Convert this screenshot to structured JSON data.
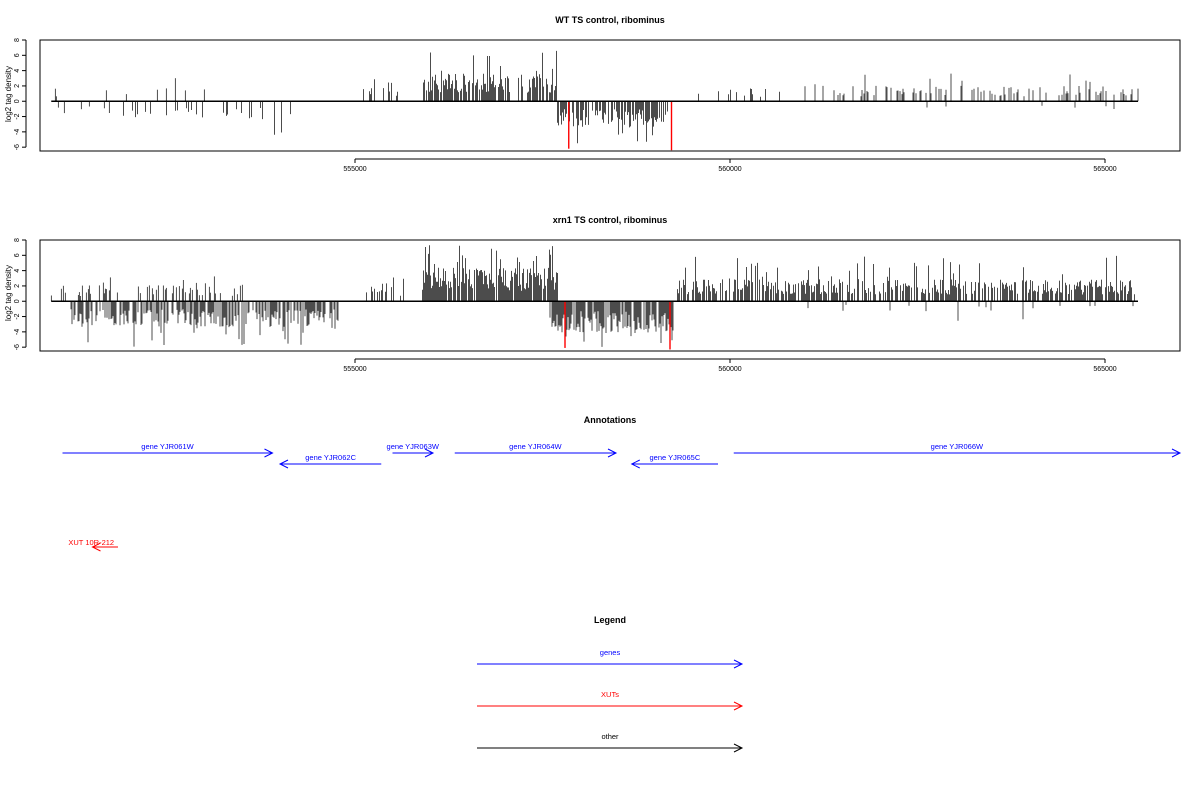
{
  "chart_data": [
    {
      "type": "bar",
      "title": "WT TS control, ribominus",
      "ylabel": "log2 tag density",
      "xlabel": "",
      "xlim": [
        550800,
        566000
      ],
      "ylim": [
        -6.5,
        8
      ],
      "yticks": [
        8,
        6,
        4,
        2,
        0,
        -2,
        -4,
        -6
      ],
      "xticks": [
        555000,
        560000,
        565000
      ],
      "xtick_labels": [
        "555000",
        "560000",
        "565000"
      ],
      "bar_color": "#000000",
      "highlight_color": "#ff0000",
      "regions": [
        {
          "strand": "plus",
          "start": 550950,
          "end": 553000,
          "density": 0.07,
          "max": 3.5,
          "base": 1.4
        },
        {
          "strand": "minus",
          "start": 550950,
          "end": 551900,
          "density": 0.03,
          "max": 3.0,
          "base": 1.2
        },
        {
          "strand": "minus",
          "start": 551900,
          "end": 554200,
          "density": 0.14,
          "max": 4.6,
          "base": 1.8
        },
        {
          "strand": "plus",
          "start": 555100,
          "end": 555600,
          "density": 0.28,
          "max": 3.0,
          "base": 1.6
        },
        {
          "strand": "plus",
          "start": 555900,
          "end": 557700,
          "density": 0.7,
          "max": 6.8,
          "base": 2.8
        },
        {
          "strand": "minus",
          "start": 557700,
          "end": 559200,
          "density": 0.6,
          "max": 5.5,
          "base": 2.6
        },
        {
          "strand": "plus",
          "start": 559300,
          "end": 560700,
          "density": 0.14,
          "max": 3.2,
          "base": 1.3
        },
        {
          "strand": "plus",
          "start": 561000,
          "end": 566000,
          "density": 0.26,
          "max": 5.2,
          "base": 1.6
        },
        {
          "strand": "minus",
          "start": 561000,
          "end": 566000,
          "density": 0.02,
          "max": 2.0,
          "base": 0.8
        }
      ],
      "highlights": [
        {
          "x": 557850,
          "value": -6.2
        },
        {
          "x": 559220,
          "value": -6.4
        }
      ]
    },
    {
      "type": "bar",
      "title": "xrn1 TS control, ribominus",
      "ylabel": "log2 tag density",
      "xlabel": "",
      "xlim": [
        550800,
        566000
      ],
      "ylim": [
        -6.5,
        8
      ],
      "yticks": [
        8,
        6,
        4,
        2,
        0,
        -2,
        -4,
        -6
      ],
      "xticks": [
        555000,
        560000,
        565000
      ],
      "xtick_labels": [
        "555000",
        "560000",
        "565000"
      ],
      "bar_color": "#000000",
      "highlight_color": "#ff0000",
      "regions": [
        {
          "strand": "plus",
          "start": 550950,
          "end": 553500,
          "density": 0.3,
          "max": 4.0,
          "base": 1.6
        },
        {
          "strand": "minus",
          "start": 551200,
          "end": 554800,
          "density": 0.65,
          "max": 6.0,
          "base": 2.6
        },
        {
          "strand": "plus",
          "start": 555100,
          "end": 555800,
          "density": 0.35,
          "max": 3.2,
          "base": 1.8
        },
        {
          "strand": "plus",
          "start": 555900,
          "end": 557700,
          "density": 0.9,
          "max": 7.5,
          "base": 3.4
        },
        {
          "strand": "minus",
          "start": 557600,
          "end": 559250,
          "density": 0.85,
          "max": 6.0,
          "base": 3.2
        },
        {
          "strand": "plus",
          "start": 559300,
          "end": 566000,
          "density": 0.6,
          "max": 6.0,
          "base": 2.2
        },
        {
          "strand": "minus",
          "start": 561000,
          "end": 566000,
          "density": 0.04,
          "max": 3.0,
          "base": 1.0
        }
      ],
      "highlights": [
        {
          "x": 557800,
          "value": -6.1
        },
        {
          "x": 559200,
          "value": -6.3
        }
      ]
    }
  ],
  "annotations": {
    "title": "Annotations",
    "genes": [
      {
        "label": "gene YJR061W",
        "start": 551100,
        "end": 553900,
        "direction": "right"
      },
      {
        "label": "gene YJR062C",
        "start": 554000,
        "end": 555350,
        "direction": "left"
      },
      {
        "label": "gene YJR063W",
        "start": 555500,
        "end": 556040,
        "direction": "right"
      },
      {
        "label": "gene YJR064W",
        "start": 556330,
        "end": 558480,
        "direction": "right"
      },
      {
        "label": "gene YJR065C",
        "start": 558690,
        "end": 559840,
        "direction": "left"
      },
      {
        "label": "gene YJR066W",
        "start": 560050,
        "end": 566000,
        "direction": "right"
      }
    ],
    "xuts": [
      {
        "label": "XUT 10R-212",
        "start": 551500,
        "end": 551840,
        "direction": "left"
      }
    ],
    "gene_color": "#0000ff",
    "xut_color": "#ff0000"
  },
  "legend": {
    "title": "Legend",
    "items": [
      {
        "label": "genes",
        "color": "#0000ff"
      },
      {
        "label": "XUTs",
        "color": "#ff0000"
      },
      {
        "label": "other",
        "color": "#000000"
      }
    ]
  }
}
